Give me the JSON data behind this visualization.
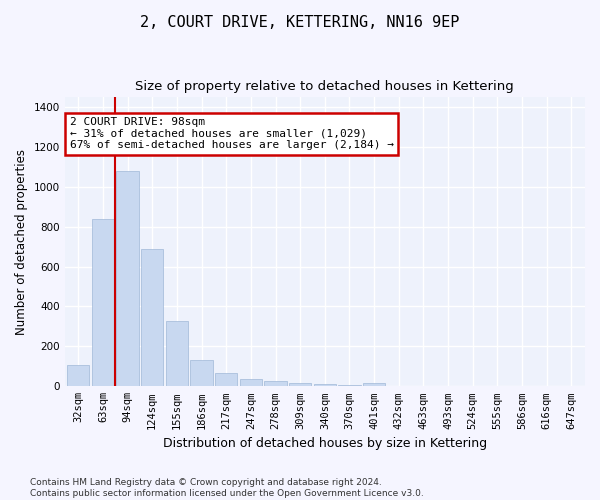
{
  "title": "2, COURT DRIVE, KETTERING, NN16 9EP",
  "subtitle": "Size of property relative to detached houses in Kettering",
  "xlabel": "Distribution of detached houses by size in Kettering",
  "ylabel": "Number of detached properties",
  "categories": [
    "32sqm",
    "63sqm",
    "94sqm",
    "124sqm",
    "155sqm",
    "186sqm",
    "217sqm",
    "247sqm",
    "278sqm",
    "309sqm",
    "340sqm",
    "370sqm",
    "401sqm",
    "432sqm",
    "463sqm",
    "493sqm",
    "524sqm",
    "555sqm",
    "586sqm",
    "616sqm",
    "647sqm"
  ],
  "values": [
    105,
    840,
    1080,
    690,
    325,
    130,
    65,
    37,
    28,
    18,
    10,
    8,
    18,
    0,
    0,
    0,
    0,
    0,
    0,
    0,
    0
  ],
  "bar_color": "#c8d8f0",
  "bar_edge_color": "#a0b8d8",
  "highlight_line_color": "#cc0000",
  "annotation_text": "2 COURT DRIVE: 98sqm\n← 31% of detached houses are smaller (1,029)\n67% of semi-detached houses are larger (2,184) →",
  "annotation_box_color": "#ffffff",
  "annotation_box_edge_color": "#cc0000",
  "ylim": [
    0,
    1450
  ],
  "yticks": [
    0,
    200,
    400,
    600,
    800,
    1000,
    1200,
    1400
  ],
  "background_color": "#eef2fc",
  "grid_color": "#ffffff",
  "footnote": "Contains HM Land Registry data © Crown copyright and database right 2024.\nContains public sector information licensed under the Open Government Licence v3.0.",
  "title_fontsize": 11,
  "subtitle_fontsize": 9.5,
  "xlabel_fontsize": 9,
  "ylabel_fontsize": 8.5,
  "tick_fontsize": 7.5,
  "annot_fontsize": 8,
  "footnote_fontsize": 6.5
}
